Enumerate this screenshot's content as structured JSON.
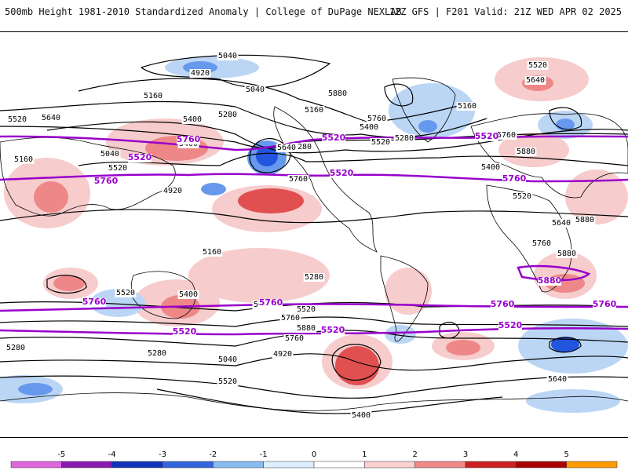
{
  "header": {
    "title": "500mb Height 1981-2010 Standardized Anomaly | College of DuPage NEXLAB",
    "run_info": "12Z GFS | F201 Valid: 21Z WED APR 02 2025"
  },
  "colors": {
    "contour": "#000000",
    "highlight_contour": "#9900cc",
    "neg_strong": "#2255dd",
    "neg_mid": "#6699ee",
    "neg_weak": "#bbd6f5",
    "pos_weak": "#f7cccc",
    "pos_mid": "#ee8888",
    "pos_strong": "#e05050"
  },
  "contour_labels": [
    "5040",
    "4920",
    "5040",
    "5160",
    "5280",
    "5400",
    "5520",
    "5640",
    "5760",
    "5880",
    "5160",
    "5400",
    "5520",
    "5280",
    "5160",
    "5520",
    "5640",
    "5760",
    "5880",
    "5280",
    "5400",
    "5520",
    "5640",
    "5760",
    "5880",
    "5880",
    "5760",
    "5640",
    "5520",
    "5400",
    "5160",
    "5040",
    "4920",
    "5160",
    "5280",
    "5400",
    "5520",
    "5640",
    "5760",
    "5880",
    "5760",
    "5520",
    "5280",
    "5160",
    "5040",
    "4920",
    "5640",
    "5520",
    "5400",
    "5280"
  ],
  "purple_labels": [
    "5520",
    "5760",
    "5520",
    "5760",
    "5520",
    "5760",
    "5880",
    "5760",
    "5760",
    "5520",
    "5520",
    "5520",
    "5760",
    "5520",
    "5760"
  ],
  "colorbar": {
    "ticks": [
      "-5",
      "-4",
      "-3",
      "-2",
      "-1",
      "0",
      "1",
      "2",
      "3",
      "4",
      "5"
    ],
    "colors": [
      "#dd66dd",
      "#8a1ab0",
      "#1133bb",
      "#3366dd",
      "#88bbf0",
      "#ddeeff",
      "#ffffff",
      "#fbd0d0",
      "#f08888",
      "#cc2020",
      "#aa0000",
      "#ff9900"
    ]
  }
}
